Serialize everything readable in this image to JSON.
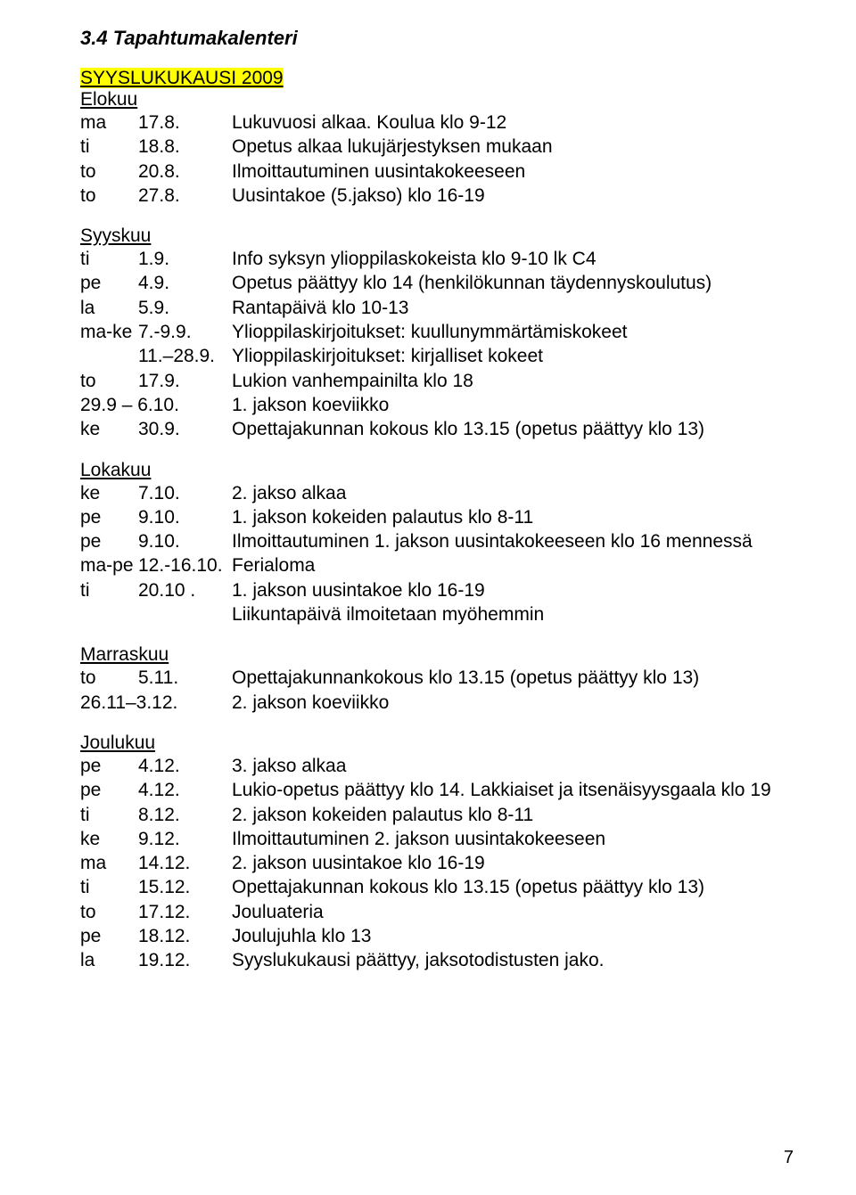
{
  "title": "3.4  Tapahtumakalenteri",
  "term_heading": "SYYSLUKUKAUSI 2009",
  "page_number": "7",
  "months": [
    {
      "name": "Elokuu",
      "rows": [
        {
          "wd": "ma",
          "dt": "17.8.",
          "txt": "Lukuvuosi alkaa. Koulua klo 9-12"
        },
        {
          "wd": "ti",
          "dt": "18.8.",
          "txt": "Opetus alkaa lukujärjestyksen mukaan"
        },
        {
          "wd": "to",
          "dt": "20.8.",
          "txt": "Ilmoittautuminen uusintakokeeseen"
        },
        {
          "wd": "to",
          "dt": "27.8.",
          "txt": "Uusintakoe (5.jakso) klo 16-19"
        }
      ]
    },
    {
      "name": "Syyskuu",
      "rows": [
        {
          "wd": "ti",
          "dt": "1.9.",
          "txt": "Info syksyn ylioppilaskokeista klo 9-10 lk C4"
        },
        {
          "wd": "pe",
          "dt": "4.9.",
          "txt": "Opetus päättyy klo 14 (henkilökunnan täydennyskoulutus)"
        },
        {
          "wd": "la",
          "dt": "5.9.",
          "txt": "Rantapäivä klo 10-13"
        },
        {
          "wd": "ma-ke",
          "dt": "7.-9.9.",
          "txt": "Ylioppilaskirjoitukset: kuullunymmärtämiskokeet"
        },
        {
          "wd": "",
          "dt": "11.–28.9.",
          "txt": "Ylioppilaskirjoitukset: kirjalliset kokeet"
        },
        {
          "wd": "to",
          "dt": "17.9.",
          "txt": "Lukion vanhempainilta klo 18"
        },
        {
          "wd": "",
          "dt": "29.9 – 6.10.",
          "txt": "1. jakson koeviikko"
        },
        {
          "wd": "ke",
          "dt": "30.9.",
          "txt": "Opettajakunnan kokous klo 13.15 (opetus päättyy klo 13)"
        }
      ]
    },
    {
      "name": "Lokakuu",
      "rows": [
        {
          "wd": "ke",
          "dt": "7.10.",
          "txt": "2. jakso alkaa"
        },
        {
          "wd": "pe",
          "dt": "9.10.",
          "txt": "1. jakson kokeiden palautus klo 8-11"
        },
        {
          "wd": "pe",
          "dt": "9.10.",
          "txt": "Ilmoittautuminen 1. jakson uusintakokeeseen klo 16 mennessä"
        },
        {
          "wd": "ma-pe",
          "dt": "12.-16.10.",
          "txt": "Ferialoma"
        },
        {
          "wd": "ti",
          "dt": "20.10 .",
          "txt": "1. jakson uusintakoe klo 16-19"
        },
        {
          "wd": "",
          "dt": "",
          "txt": "Liikuntapäivä ilmoitetaan myöhemmin"
        }
      ]
    },
    {
      "name": "Marraskuu",
      "rows": [
        {
          "wd": "to",
          "dt": "5.11.",
          "txt": "Opettajakunnankokous klo 13.15 (opetus päättyy klo 13)"
        },
        {
          "wd": "",
          "dt": "26.11–3.12.",
          "txt": "2. jakson koeviikko"
        }
      ]
    },
    {
      "name": "Joulukuu",
      "rows": [
        {
          "wd": "pe",
          "dt": "4.12.",
          "txt": "3. jakso alkaa"
        },
        {
          "wd": "pe",
          "dt": "4.12.",
          "txt": "Lukio-opetus päättyy klo 14. Lakkiaiset ja itsenäisyysgaala klo 19"
        },
        {
          "wd": "ti",
          "dt": "8.12.",
          "txt": "2. jakson kokeiden palautus klo 8-11"
        },
        {
          "wd": "ke",
          "dt": "9.12.",
          "txt": "Ilmoittautuminen 2. jakson uusintakokeeseen"
        },
        {
          "wd": "ma",
          "dt": "14.12.",
          "txt": "2. jakson uusintakoe klo 16-19"
        },
        {
          "wd": "ti",
          "dt": "15.12.",
          "txt": "Opettajakunnan kokous klo 13.15 (opetus päättyy klo 13)"
        },
        {
          "wd": "to",
          "dt": "17.12.",
          "txt": "Jouluateria"
        },
        {
          "wd": "pe",
          "dt": "18.12.",
          "txt": "Joulujuhla klo 13"
        },
        {
          "wd": "la",
          "dt": "19.12.",
          "txt": "Syyslukukausi päättyy, jaksotodistusten jako."
        }
      ]
    }
  ]
}
